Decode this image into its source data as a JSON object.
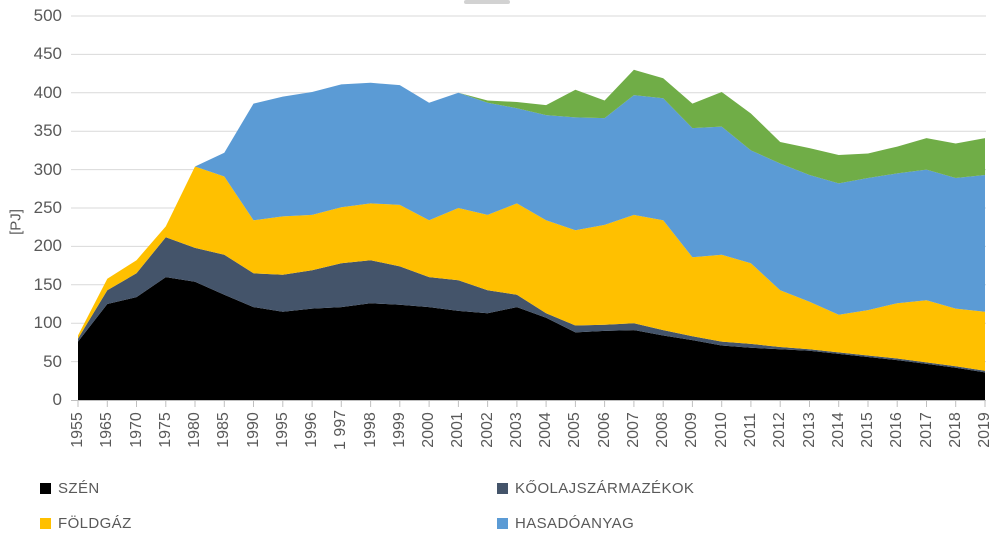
{
  "figure": {
    "kind": "stacked-area-chart",
    "note": "chart title cropped off at top edge of screenshot"
  },
  "legend": {
    "items": [
      {
        "label": "SZÉN",
        "color": "#000000"
      },
      {
        "label": "KŐOLAJSZÁRMAZÉKOK",
        "color": "#44546A"
      },
      {
        "label": "FÖLDGÁZ",
        "color": "#FFC000"
      },
      {
        "label": "HASADÓANYAG",
        "color": "#5B9BD5"
      }
    ]
  },
  "chart_data": {
    "type": "area",
    "stacked": true,
    "title": "",
    "xlabel": "",
    "ylabel": "[PJ]",
    "units": "PJ",
    "ylim": [
      0,
      500
    ],
    "y_tick_step": 50,
    "y_tick_labels": [
      "0",
      "50",
      "100",
      "150",
      "200",
      "250",
      "300",
      "350",
      "400",
      "450",
      "500"
    ],
    "grid": true,
    "grid_color": "#D9D9D9",
    "axis_tick_color": "#BFBFBF",
    "text_color": "#595959",
    "legend_position": "bottom",
    "categories": [
      "1955",
      "1965",
      "1970",
      "1975",
      "1980",
      "1985",
      "1990",
      "1995",
      "1996",
      "1 997",
      "1998",
      "1999",
      "2000",
      "2001",
      "2002",
      "2003",
      "2004",
      "2005",
      "2006",
      "2007",
      "2008",
      "2009",
      "2010",
      "2011",
      "2012",
      "2013",
      "2014",
      "2015",
      "2016",
      "2017",
      "2018",
      "2019"
    ],
    "series": [
      {
        "name": "SZÉN",
        "color": "#000000",
        "values": [
          76,
          125,
          134,
          160,
          154,
          137,
          121,
          115,
          119,
          121,
          126,
          124,
          121,
          116,
          113,
          121,
          107,
          88,
          90,
          91,
          84,
          78,
          71,
          68,
          66,
          64,
          60,
          56,
          52,
          47,
          42,
          36
        ]
      },
      {
        "name": "KŐOLAJSZÁRMAZÉKOK",
        "color": "#44546A",
        "values": [
          4,
          18,
          31,
          52,
          44,
          52,
          44,
          48,
          50,
          57,
          56,
          50,
          39,
          40,
          30,
          16,
          6,
          9,
          8,
          9,
          7,
          5,
          5,
          5,
          3,
          2,
          2,
          2,
          2,
          2,
          2,
          2
        ]
      },
      {
        "name": "FÖLDGÁZ",
        "color": "#FFC000",
        "values": [
          4,
          15,
          17,
          14,
          106,
          102,
          69,
          76,
          72,
          73,
          74,
          80,
          74,
          94,
          98,
          119,
          121,
          124,
          130,
          141,
          143,
          103,
          113,
          105,
          74,
          62,
          49,
          59,
          72,
          81,
          75,
          77
        ]
      },
      {
        "name": "HASADÓANYAG",
        "color": "#5B9BD5",
        "values": [
          0,
          0,
          0,
          0,
          0,
          31,
          152,
          156,
          160,
          160,
          157,
          156,
          153,
          150,
          146,
          124,
          137,
          147,
          139,
          156,
          159,
          168,
          167,
          147,
          165,
          165,
          171,
          172,
          169,
          170,
          170,
          178
        ]
      },
      {
        "name": "",
        "note": "fifth (green) series — its legend entry is cut off below the visible image",
        "color": "#70AD47",
        "values": [
          0,
          0,
          0,
          0,
          0,
          0,
          0,
          0,
          0,
          0,
          0,
          0,
          0,
          0,
          3,
          8,
          13,
          36,
          23,
          33,
          26,
          32,
          45,
          48,
          28,
          35,
          37,
          32,
          35,
          41,
          45,
          48
        ]
      }
    ]
  }
}
